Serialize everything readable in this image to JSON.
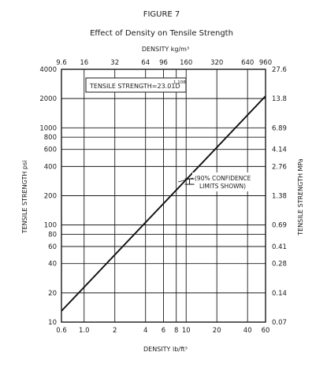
{
  "chart_data": {
    "type": "line",
    "figure_label": "FIGURE 7",
    "title": "Effect of Density on Tensile Strength",
    "top_axis_label": "DENSITY kg/m³",
    "bottom_axis_label": "DENSITY lb/ft³",
    "left_axis_label": "TENSILE STRENGTH psi",
    "right_axis_label": "TENSILE STRENGTH MPa",
    "log_scale": {
      "x": true,
      "y": true
    },
    "grid": true,
    "xlim": [
      0.6,
      60
    ],
    "ylim": [
      10,
      4000
    ],
    "x_ticks": [
      {
        "value": 0.6,
        "label": "0.6"
      },
      {
        "value": 1,
        "label": "1.0"
      },
      {
        "value": 2,
        "label": "2"
      },
      {
        "value": 4,
        "label": "4"
      },
      {
        "value": 6,
        "label": "6"
      },
      {
        "value": 8,
        "label": "8"
      },
      {
        "value": 10,
        "label": "10"
      },
      {
        "value": 20,
        "label": "20"
      },
      {
        "value": 40,
        "label": "40"
      },
      {
        "value": 60,
        "label": "60"
      }
    ],
    "top_ticks": [
      {
        "value": 0.6,
        "label": "9.6"
      },
      {
        "value": 1,
        "label": "16"
      },
      {
        "value": 2,
        "label": "32"
      },
      {
        "value": 4,
        "label": "64"
      },
      {
        "value": 6,
        "label": "96"
      },
      {
        "value": 10,
        "label": "160"
      },
      {
        "value": 20,
        "label": "320"
      },
      {
        "value": 40,
        "label": "640"
      },
      {
        "value": 60,
        "label": "960"
      }
    ],
    "y_ticks": [
      {
        "value": 4000,
        "label": "4000"
      },
      {
        "value": 2000,
        "label": "2000"
      },
      {
        "value": 1000,
        "label": "1000"
      },
      {
        "value": 800,
        "label": "800"
      },
      {
        "value": 600,
        "label": "600"
      },
      {
        "value": 400,
        "label": "400"
      },
      {
        "value": 200,
        "label": "200"
      },
      {
        "value": 100,
        "label": "100"
      },
      {
        "value": 80,
        "label": "80"
      },
      {
        "value": 60,
        "label": "60"
      },
      {
        "value": 40,
        "label": "40"
      },
      {
        "value": 20,
        "label": "20"
      },
      {
        "value": 10,
        "label": "10"
      }
    ],
    "right_ticks": [
      {
        "value": 4000,
        "label": "27.6"
      },
      {
        "value": 2000,
        "label": "13.8"
      },
      {
        "value": 1000,
        "label": "6.89"
      },
      {
        "value": 600,
        "label": "4.14"
      },
      {
        "value": 400,
        "label": "2.76"
      },
      {
        "value": 200,
        "label": "1.38"
      },
      {
        "value": 100,
        "label": "0.69"
      },
      {
        "value": 60,
        "label": "0.41"
      },
      {
        "value": 40,
        "label": "0.28"
      },
      {
        "value": 20,
        "label": "0.14"
      },
      {
        "value": 10,
        "label": "0.07"
      }
    ],
    "series": [
      {
        "x": [
          0.6,
          60
        ],
        "y": [
          13,
          2120
        ]
      }
    ],
    "annotations": {
      "formula": "TENSILE STRENGTH=23.01D",
      "formula_exponent": "1.108",
      "note_line1": "(90% CONFIDENCE",
      "note_line2": "LIMITS SHOWN)",
      "confidence_marker": {
        "x": 10.8,
        "y": 280,
        "y_low": 262,
        "y_high": 298
      }
    }
  }
}
